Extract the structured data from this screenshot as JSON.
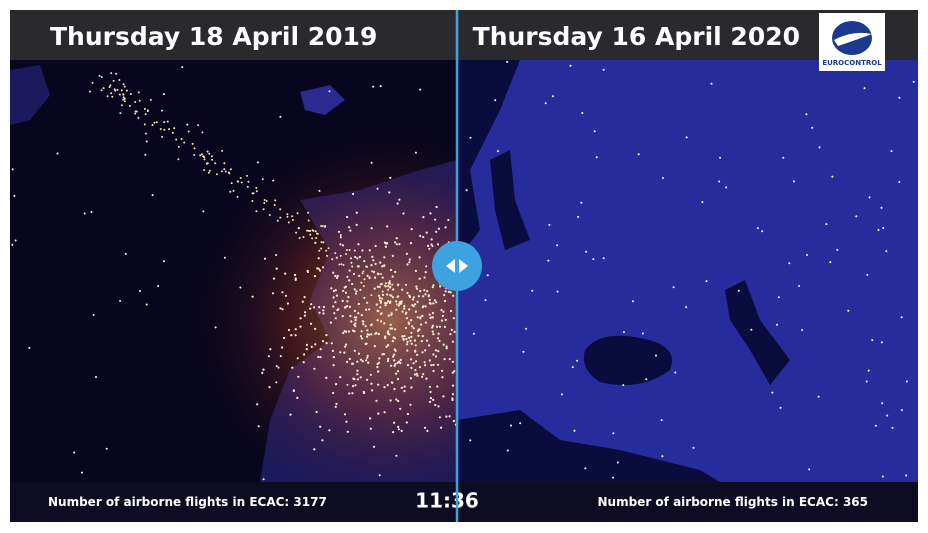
{
  "header": {
    "left_date": "Thursday 18 April 2019",
    "right_date": "Thursday 16 April 2020",
    "logo": "EUROCONTROL"
  },
  "footer": {
    "left_label": "Number of airborne flights in ECAC:",
    "left_count": 3177,
    "time": "11:36",
    "right_label": "Number of airborne flights in ECAC:",
    "right_count": 365
  }
}
